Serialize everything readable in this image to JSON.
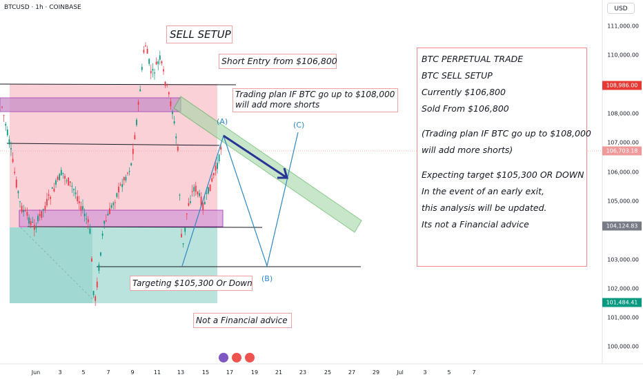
{
  "header": {
    "symbol": "BTCUSD · 1h · COINBASE",
    "currency": "USD"
  },
  "price_axis": {
    "ticks": [
      "111,000.00",
      "110,000.00",
      "108,000.00",
      "107,000.00",
      "106,000.00",
      "105,000.00",
      "103,000.00",
      "102,000.00",
      "101,000.00",
      "100,000.00"
    ],
    "tags": [
      {
        "label": "108,986.00",
        "color": "#e53935"
      },
      {
        "label": "106,703.18",
        "color": "#ef9a9a"
      },
      {
        "label": "104,124.83",
        "color": "#787b86"
      },
      {
        "label": "101,484.41",
        "color": "#089981"
      }
    ]
  },
  "time_axis": {
    "ticks": [
      "Jun",
      "3",
      "5",
      "7",
      "9",
      "11",
      "13",
      "15",
      "17",
      "19",
      "21",
      "23",
      "25",
      "27",
      "29",
      "Jul",
      "3",
      "5",
      "7"
    ]
  },
  "annotations": {
    "sell_setup": "SELL SETUP",
    "short_entry": "Short Entry from $106,800",
    "trading_plan_1": "Trading plan IF BTC go up to $108,000",
    "trading_plan_2": "will add more shorts",
    "targeting": "Targeting $105,300 Or Down",
    "not_advice": "Not a Financial advice"
  },
  "waves": {
    "a": "(A)",
    "b": "(B)",
    "c": "(C)"
  },
  "trade_plan": {
    "lines": [
      "BTC PERPETUAL TRADE",
      "BTC SELL SETUP",
      "Currently $106,800",
      "Sold From $106,800",
      "",
      "(Trading plan IF BTC go up to $108,000",
      "will add more shorts)",
      "",
      "Expecting target $105,300 OR DOWN",
      "In the event of an early exit,",
      "this analysis will be updated.",
      "Its not a Financial advice"
    ]
  },
  "colors": {
    "up": "#089981",
    "down": "#f23645",
    "wave": "#2e86c1",
    "channel": "#4caf50",
    "arrow": "#283593"
  }
}
